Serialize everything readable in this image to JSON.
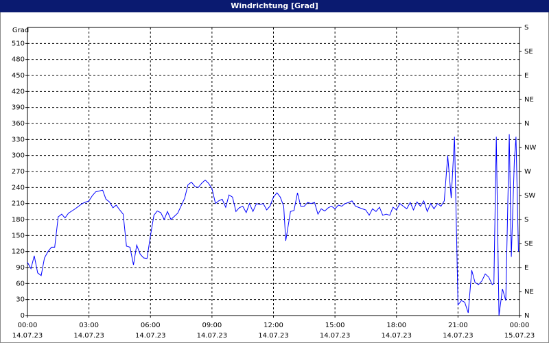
{
  "chart_data": {
    "type": "line",
    "title": "Windrichtung [Grad]",
    "y_label": "Grad",
    "xlim": [
      0,
      24
    ],
    "ylim": [
      0,
      540
    ],
    "y2lim": [
      0,
      540
    ],
    "grid": true,
    "xticks": [
      {
        "value": 0,
        "label": "00:00",
        "sublabel": "14.07.23"
      },
      {
        "value": 3,
        "label": "03:00",
        "sublabel": "14.07.23"
      },
      {
        "value": 6,
        "label": "06:00",
        "sublabel": "14.07.23"
      },
      {
        "value": 9,
        "label": "09:00",
        "sublabel": "14.07.23"
      },
      {
        "value": 12,
        "label": "12:00",
        "sublabel": "14.07.23"
      },
      {
        "value": 15,
        "label": "15:00",
        "sublabel": "14.07.23"
      },
      {
        "value": 18,
        "label": "18:00",
        "sublabel": "14.07.23"
      },
      {
        "value": 21,
        "label": "21:00",
        "sublabel": "14.07.23"
      },
      {
        "value": 24,
        "label": "00:00",
        "sublabel": "15.07.23"
      }
    ],
    "yticks": [
      0,
      30,
      60,
      90,
      120,
      150,
      180,
      210,
      240,
      270,
      300,
      330,
      360,
      390,
      420,
      450,
      480,
      510
    ],
    "y2ticks": [
      {
        "value": 0,
        "label": "N"
      },
      {
        "value": 45,
        "label": "NE"
      },
      {
        "value": 90,
        "label": "E"
      },
      {
        "value": 135,
        "label": "SE"
      },
      {
        "value": 180,
        "label": "S"
      },
      {
        "value": 225,
        "label": "SW"
      },
      {
        "value": 270,
        "label": "W"
      },
      {
        "value": 315,
        "label": "NW"
      },
      {
        "value": 360,
        "label": "N"
      },
      {
        "value": 405,
        "label": "NE"
      },
      {
        "value": 450,
        "label": "E"
      },
      {
        "value": 495,
        "label": "SE"
      },
      {
        "value": 540,
        "label": "S"
      }
    ],
    "x": [
      0,
      0.17,
      0.33,
      0.5,
      0.67,
      0.83,
      1.0,
      1.17,
      1.33,
      1.5,
      1.67,
      1.83,
      2.0,
      2.33,
      2.67,
      3.0,
      3.17,
      3.33,
      3.67,
      3.83,
      4.0,
      4.17,
      4.33,
      4.5,
      4.67,
      4.83,
      5.0,
      5.17,
      5.33,
      5.5,
      5.67,
      5.83,
      6.0,
      6.17,
      6.33,
      6.5,
      6.67,
      6.83,
      7.0,
      7.33,
      7.67,
      7.83,
      8.0,
      8.17,
      8.33,
      8.5,
      8.67,
      8.83,
      9.0,
      9.17,
      9.33,
      9.5,
      9.67,
      9.83,
      10.0,
      10.17,
      10.33,
      10.5,
      10.67,
      10.83,
      11.0,
      11.17,
      11.33,
      11.5,
      11.67,
      11.83,
      12.0,
      12.17,
      12.33,
      12.5,
      12.6,
      12.83,
      13.0,
      13.17,
      13.33,
      13.5,
      13.67,
      13.83,
      14.0,
      14.17,
      14.33,
      14.5,
      14.67,
      14.83,
      15.0,
      15.17,
      15.33,
      15.5,
      15.67,
      15.83,
      16.0,
      16.33,
      16.5,
      16.67,
      16.83,
      17.0,
      17.17,
      17.33,
      17.5,
      17.67,
      17.83,
      18.0,
      18.17,
      18.33,
      18.5,
      18.67,
      18.83,
      19.0,
      19.17,
      19.33,
      19.5,
      19.67,
      19.83,
      20.0,
      20.17,
      20.33,
      20.5,
      20.67,
      20.83,
      21.0,
      21.17,
      21.33,
      21.5,
      21.67,
      21.83,
      22.0,
      22.17,
      22.33,
      22.5,
      22.67,
      22.75,
      22.87,
      23.0,
      23.17,
      23.33,
      23.5,
      23.6,
      23.75,
      23.83,
      23.95
    ],
    "series": [
      {
        "name": "Windrichtung",
        "color": "#0000ff",
        "values": [
          100,
          88,
          112,
          80,
          75,
          108,
          120,
          128,
          128,
          185,
          190,
          183,
          192,
          200,
          210,
          215,
          225,
          232,
          235,
          218,
          213,
          202,
          207,
          198,
          190,
          130,
          128,
          95,
          132,
          115,
          108,
          107,
          150,
          188,
          196,
          193,
          180,
          195,
          180,
          192,
          220,
          245,
          250,
          242,
          240,
          248,
          254,
          248,
          238,
          210,
          215,
          218,
          203,
          226,
          222,
          195,
          202,
          205,
          193,
          210,
          195,
          210,
          208,
          210,
          198,
          205,
          222,
          230,
          222,
          205,
          140,
          195,
          197,
          230,
          205,
          205,
          212,
          210,
          212,
          190,
          200,
          196,
          202,
          205,
          200,
          207,
          205,
          210,
          212,
          215,
          205,
          200,
          198,
          188,
          200,
          195,
          203,
          188,
          190,
          188,
          203,
          198,
          210,
          205,
          200,
          212,
          198,
          213,
          205,
          215,
          195,
          210,
          200,
          210,
          205,
          215,
          300,
          220,
          335,
          20,
          28,
          25,
          5,
          85,
          62,
          58,
          65,
          78,
          72,
          58,
          60,
          335,
          0,
          50,
          28,
          340,
          110,
          290,
          335,
          120
        ]
      }
    ]
  }
}
